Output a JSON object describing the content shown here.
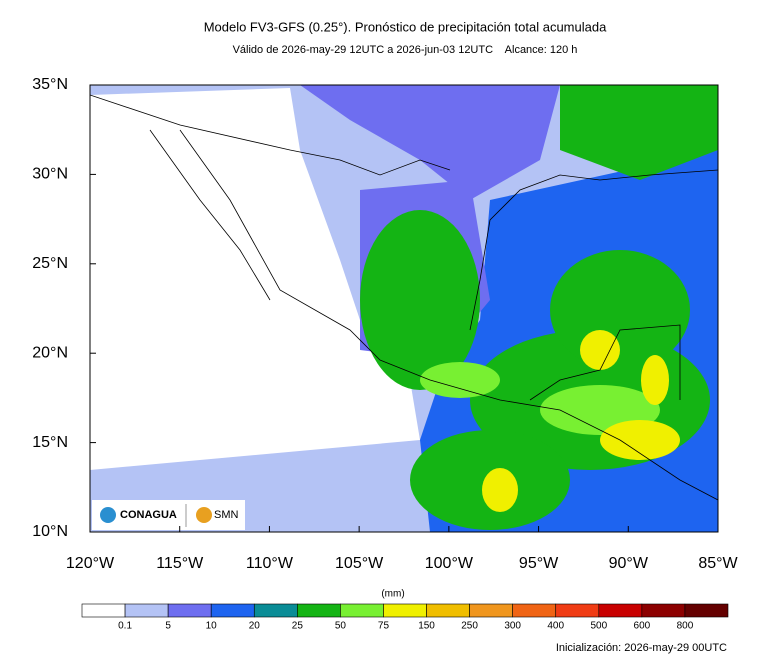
{
  "header": {
    "title": "Modelo FV3-GFS (0.25°). Pronóstico de precipitación total acumulada",
    "subtitle": "Válido de 2026-may-29 12UTC a 2026-jun-03 12UTC    Alcance: 120 h"
  },
  "map": {
    "xlim": [
      -120,
      -85
    ],
    "ylim": [
      10,
      35
    ],
    "xticks": [
      {
        "value": -120,
        "label": "120°W"
      },
      {
        "value": -115,
        "label": "115°W"
      },
      {
        "value": -110,
        "label": "110°W"
      },
      {
        "value": -105,
        "label": "105°W"
      },
      {
        "value": -100,
        "label": "100°W"
      },
      {
        "value": -95,
        "label": "95°W"
      },
      {
        "value": -90,
        "label": "90°W"
      },
      {
        "value": -85,
        "label": "85°W"
      }
    ],
    "yticks": [
      {
        "value": 10,
        "label": "10°N"
      },
      {
        "value": 15,
        "label": "15°N"
      },
      {
        "value": 20,
        "label": "20°N"
      },
      {
        "value": 25,
        "label": "25°N"
      },
      {
        "value": 30,
        "label": "30°N"
      },
      {
        "value": 35,
        "label": "35°N"
      }
    ],
    "logos": [
      "CONAGUA",
      "SMN"
    ]
  },
  "colorbar": {
    "unit": "(mm)",
    "colors": [
      "#ffffff",
      "#b4c3f5",
      "#6e6ef0",
      "#1e64f0",
      "#0a8c96",
      "#14b414",
      "#78f032",
      "#f0f000",
      "#f0be00",
      "#f0961e",
      "#f06414",
      "#f03c14",
      "#c80000",
      "#8c0000",
      "#640000"
    ],
    "labels": [
      0.1,
      5,
      10,
      20,
      25,
      50,
      75,
      150,
      250,
      300,
      400,
      500,
      600,
      800
    ]
  },
  "footer": {
    "init": "Inicialización: 2026-may-29 00UTC"
  }
}
